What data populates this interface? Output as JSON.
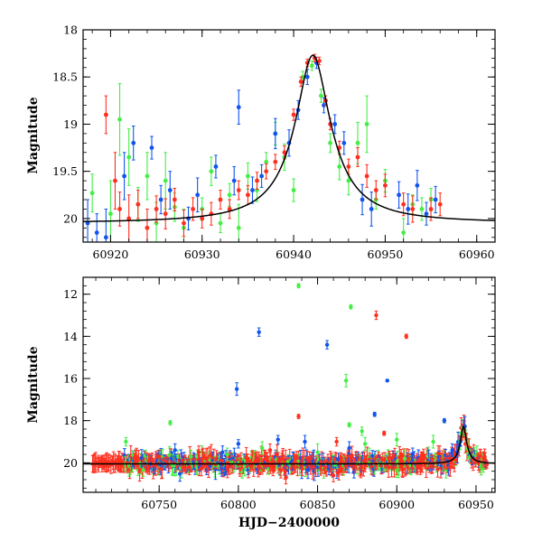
{
  "chart_data": [
    {
      "type": "scatter",
      "panel": "top",
      "title": "",
      "xlabel": "",
      "ylabel": "Magnitude",
      "xlim": [
        60917,
        60962
      ],
      "ylim": [
        18,
        20.25
      ],
      "y_inverted": true,
      "x_ticks": [
        60920,
        60930,
        60940,
        60950,
        60960
      ],
      "x_tick_labels": [
        "60920",
        "60930",
        "60940",
        "60950",
        "60960"
      ],
      "y_ticks": [
        18,
        18.5,
        19,
        19.5,
        20
      ],
      "y_tick_labels": [
        "18",
        "18.5",
        "19",
        "19.5",
        "20"
      ],
      "model_curve": {
        "name": "model",
        "color": "#000000",
        "peak_x": 60942.1,
        "peak_mag": 18.27,
        "baseline_mag": 20.05,
        "width": 1.6
      },
      "series": [
        {
          "name": "green",
          "color": "#44ee44",
          "points": [
            [
              60918,
              19.73,
              0.2
            ],
            [
              60920,
              19.95,
              0.35
            ],
            [
              60921,
              18.95,
              0.38
            ],
            [
              60922,
              19.35,
              0.3
            ],
            [
              60923,
              19.85,
              0.18
            ],
            [
              60924,
              19.55,
              0.25
            ],
            [
              60925,
              20.05,
              0.22
            ],
            [
              60926,
              19.6,
              0.3
            ],
            [
              60927,
              19.88,
              0.15
            ],
            [
              60928,
              20.1,
              0.2
            ],
            [
              60930,
              19.9,
              0.12
            ],
            [
              60931,
              19.5,
              0.15
            ],
            [
              60932,
              20.05,
              0.1
            ],
            [
              60933,
              19.75,
              0.12
            ],
            [
              60934,
              20.1,
              0.25
            ],
            [
              60935,
              19.55,
              0.14
            ],
            [
              60936,
              19.7,
              0.12
            ],
            [
              60937,
              19.4,
              0.1
            ],
            [
              60938,
              19.1,
              0.12
            ],
            [
              60939,
              19.35,
              0.14
            ],
            [
              60940,
              19.7,
              0.12
            ],
            [
              60941,
              18.5,
              0.06
            ],
            [
              60942,
              18.38,
              0.05
            ],
            [
              60943,
              18.7,
              0.07
            ],
            [
              60944,
              19.2,
              0.1
            ],
            [
              60945,
              19.45,
              0.14
            ],
            [
              60946,
              19.6,
              0.15
            ],
            [
              60947,
              19.2,
              0.22
            ],
            [
              60948,
              19.0,
              0.3
            ],
            [
              60949,
              19.8,
              0.1
            ],
            [
              60950,
              19.6,
              0.12
            ],
            [
              60952,
              20.15,
              0.15
            ],
            [
              60953,
              19.85,
              0.1
            ],
            [
              60954,
              19.9,
              0.12
            ],
            [
              60955,
              19.8,
              0.12
            ]
          ]
        },
        {
          "name": "blue",
          "color": "#1155ee",
          "points": [
            [
              60917.5,
              20.05,
              0.25
            ],
            [
              60918.5,
              20.15,
              0.2
            ],
            [
              60919.5,
              20.2,
              0.3
            ],
            [
              60921.5,
              19.55,
              0.25
            ],
            [
              60922.5,
              19.2,
              0.18
            ],
            [
              60924.5,
              19.25,
              0.12
            ],
            [
              60925.5,
              19.8,
              0.15
            ],
            [
              60926.5,
              19.7,
              0.2
            ],
            [
              60928.5,
              20.0,
              0.12
            ],
            [
              60929.5,
              19.75,
              0.18
            ],
            [
              60931.5,
              19.45,
              0.12
            ],
            [
              60933.5,
              19.6,
              0.15
            ],
            [
              60934,
              18.82,
              0.18
            ],
            [
              60935.5,
              19.7,
              0.14
            ],
            [
              60936.5,
              19.55,
              0.12
            ],
            [
              60938,
              19.1,
              0.16
            ],
            [
              60939.5,
              19.2,
              0.14
            ],
            [
              60940.5,
              18.85,
              0.1
            ],
            [
              60941.5,
              18.5,
              0.08
            ],
            [
              60942.5,
              18.35,
              0.06
            ],
            [
              60943.3,
              18.8,
              0.08
            ],
            [
              60944.5,
              19.0,
              0.1
            ],
            [
              60945.5,
              19.2,
              0.12
            ],
            [
              60947.5,
              19.8,
              0.16
            ],
            [
              60948.5,
              19.9,
              0.18
            ],
            [
              60951.5,
              19.75,
              0.14
            ],
            [
              60952.5,
              19.9,
              0.16
            ],
            [
              60953.5,
              19.65,
              0.16
            ],
            [
              60954.5,
              19.95,
              0.12
            ],
            [
              60955.5,
              19.8,
              0.14
            ]
          ]
        },
        {
          "name": "red",
          "color": "#ff2f1f",
          "points": [
            [
              60919.5,
              18.9,
              0.2
            ],
            [
              60920.5,
              19.6,
              0.3
            ],
            [
              60921,
              19.9,
              0.18
            ],
            [
              60922,
              20.0,
              0.25
            ],
            [
              60923,
              19.85,
              0.15
            ],
            [
              60924,
              20.1,
              0.2
            ],
            [
              60925,
              19.9,
              0.14
            ],
            [
              60926,
              19.95,
              0.16
            ],
            [
              60927,
              19.8,
              0.12
            ],
            [
              60928,
              20.05,
              0.14
            ],
            [
              60929,
              19.9,
              0.12
            ],
            [
              60930,
              20.0,
              0.1
            ],
            [
              60931,
              19.95,
              0.12
            ],
            [
              60932,
              19.8,
              0.1
            ],
            [
              60933,
              19.9,
              0.1
            ],
            [
              60934,
              19.7,
              0.1
            ],
            [
              60935,
              19.75,
              0.1
            ],
            [
              60936,
              19.6,
              0.09
            ],
            [
              60937,
              19.5,
              0.08
            ],
            [
              60938,
              19.4,
              0.08
            ],
            [
              60939,
              19.3,
              0.07
            ],
            [
              60940,
              18.9,
              0.06
            ],
            [
              60940.8,
              18.55,
              0.05
            ],
            [
              60941.5,
              18.35,
              0.04
            ],
            [
              60942.3,
              18.3,
              0.04
            ],
            [
              60942.8,
              18.33,
              0.04
            ],
            [
              60943.5,
              18.75,
              0.05
            ],
            [
              60944,
              19.0,
              0.06
            ],
            [
              60945,
              19.25,
              0.07
            ],
            [
              60946,
              19.45,
              0.08
            ],
            [
              60947,
              19.35,
              0.1
            ],
            [
              60948,
              19.55,
              0.12
            ],
            [
              60949,
              19.7,
              0.1
            ],
            [
              60950,
              19.65,
              0.12
            ],
            [
              60952,
              19.85,
              0.12
            ],
            [
              60953,
              19.9,
              0.14
            ],
            [
              60955,
              19.9,
              0.12
            ],
            [
              60956,
              19.85,
              0.12
            ]
          ]
        }
      ]
    },
    {
      "type": "scatter",
      "panel": "bottom",
      "title": "",
      "xlabel": "HJD−2400000",
      "ylabel": "Magnitude",
      "xlim": [
        60702,
        60962
      ],
      "ylim": [
        11.2,
        21.4
      ],
      "y_inverted": true,
      "x_ticks": [
        60750,
        60800,
        60850,
        60900,
        60950
      ],
      "x_tick_labels": [
        "60750",
        "60800",
        "60850",
        "60900",
        "60950"
      ],
      "y_ticks": [
        12,
        14,
        16,
        18,
        20
      ],
      "y_tick_labels": [
        "12",
        "14",
        "16",
        "18",
        "20"
      ],
      "model_curve": {
        "name": "model",
        "color": "#000000",
        "peak_x": 60942.1,
        "peak_mag": 18.27,
        "baseline_mag": 20.05,
        "width": 1.6
      },
      "baseline_cloud": {
        "x_start": 60708,
        "x_end": 60957,
        "mag_center": 20.0,
        "mag_scatter": 0.35
      },
      "series": [
        {
          "name": "green",
          "color": "#44ee44",
          "points": [
            [
              60838,
              11.6,
              0.1
            ],
            [
              60871,
              12.6,
              0.1
            ],
            [
              60868,
              16.1,
              0.3
            ],
            [
              60757,
              18.1,
              0.1
            ],
            [
              60878,
              18.5,
              0.2
            ],
            [
              60729,
              19.0,
              0.2
            ],
            [
              60850,
              19.5,
              0.4
            ],
            [
              60880,
              19.1,
              0.3
            ],
            [
              60900,
              18.9,
              0.3
            ],
            [
              60923,
              19.0,
              0.3
            ],
            [
              60870,
              18.2,
              0.1
            ],
            [
              60793,
              19.6,
              0.3
            ],
            [
              60815,
              19.3,
              0.3
            ],
            [
              60905,
              19.8,
              0.4
            ],
            [
              60770,
              19.7,
              0.3
            ]
          ]
        },
        {
          "name": "blue",
          "color": "#1155ee",
          "points": [
            [
              60813,
              13.8,
              0.2
            ],
            [
              60856,
              14.4,
              0.2
            ],
            [
              60799,
              16.5,
              0.3
            ],
            [
              60894,
              16.1,
              0.05
            ],
            [
              60886,
              17.7,
              0.1
            ],
            [
              60930,
              18.0,
              0.1
            ],
            [
              60825,
              18.9,
              0.2
            ],
            [
              60842,
              19.0,
              0.3
            ],
            [
              60760,
              19.4,
              0.3
            ],
            [
              60790,
              19.5,
              0.3
            ],
            [
              60870,
              19.3,
              0.3
            ],
            [
              60910,
              19.6,
              0.3
            ],
            [
              60935,
              19.4,
              0.3
            ],
            [
              60800,
              19.1,
              0.2
            ]
          ]
        },
        {
          "name": "red",
          "color": "#ff2f1f",
          "points": [
            [
              60887,
              13.0,
              0.2
            ],
            [
              60906,
              14.0,
              0.1
            ],
            [
              60892,
              18.6,
              0.1
            ],
            [
              60838,
              17.8,
              0.1
            ],
            [
              60862,
              19.0,
              0.2
            ],
            [
              60775,
              19.5,
              0.3
            ],
            [
              60750,
              19.7,
              0.3
            ],
            [
              60820,
              19.4,
              0.3
            ],
            [
              60830,
              20.7,
              0.3
            ],
            [
              60860,
              20.6,
              0.3
            ]
          ]
        }
      ]
    }
  ]
}
